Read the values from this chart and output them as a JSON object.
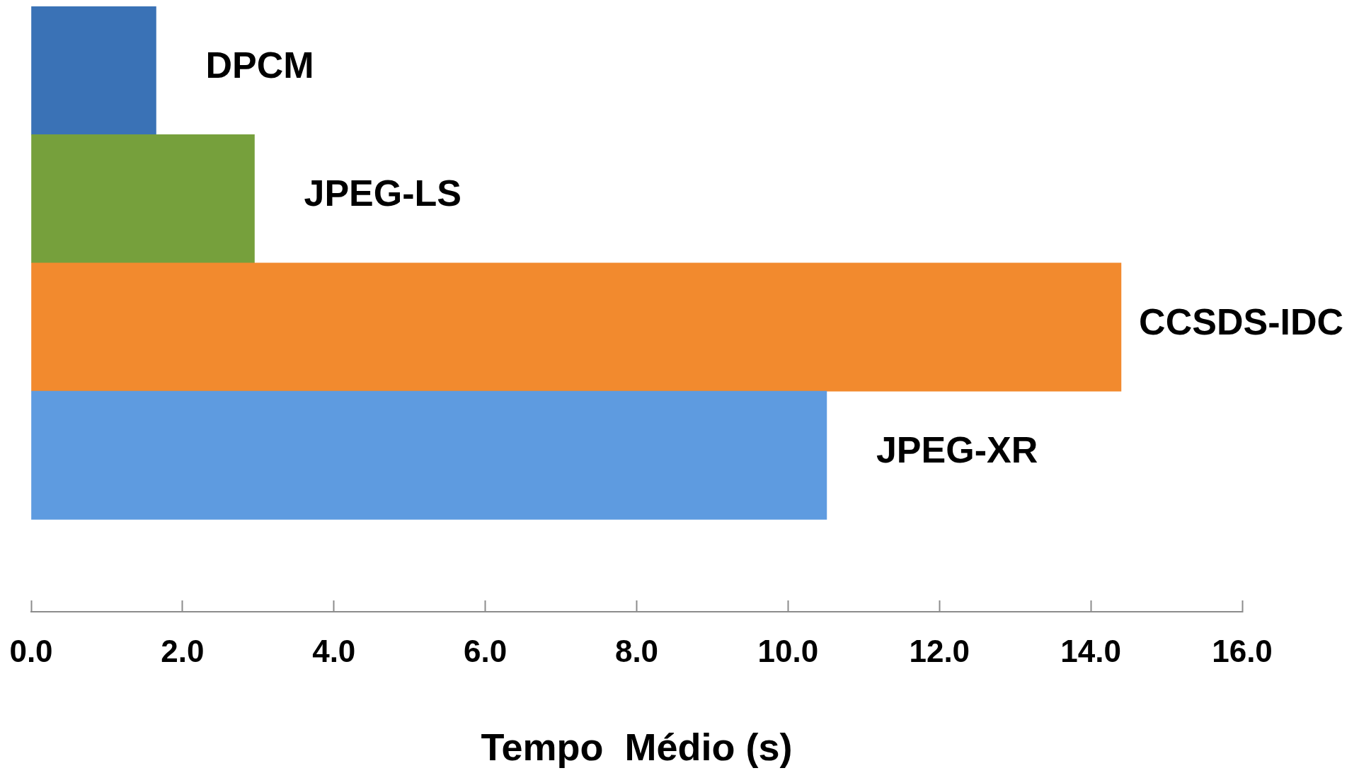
{
  "chart_data": {
    "type": "bar",
    "orientation": "horizontal",
    "categories": [
      "DPCM",
      "JPEG-LS",
      "CCSDS-IDC",
      "JPEG-XR"
    ],
    "values": [
      1.65,
      2.95,
      14.4,
      10.51
    ],
    "colors": [
      "#3a72b6",
      "#76a03c",
      "#f28a2e",
      "#5e9be0"
    ],
    "xlabel": "Tempo  Médio (s)",
    "xlim": [
      0,
      16
    ],
    "xticks": [
      {
        "value": 0,
        "label": "0.0"
      },
      {
        "value": 2,
        "label": "2.0"
      },
      {
        "value": 4,
        "label": "4.0"
      },
      {
        "value": 6,
        "label": "6.0"
      },
      {
        "value": 8,
        "label": "8.0"
      },
      {
        "value": 10,
        "label": "10.0"
      },
      {
        "value": 12,
        "label": "12.0"
      },
      {
        "value": 14,
        "label": "14.0"
      },
      {
        "value": 16,
        "label": "16.0"
      }
    ],
    "grid": false,
    "legend": false
  }
}
